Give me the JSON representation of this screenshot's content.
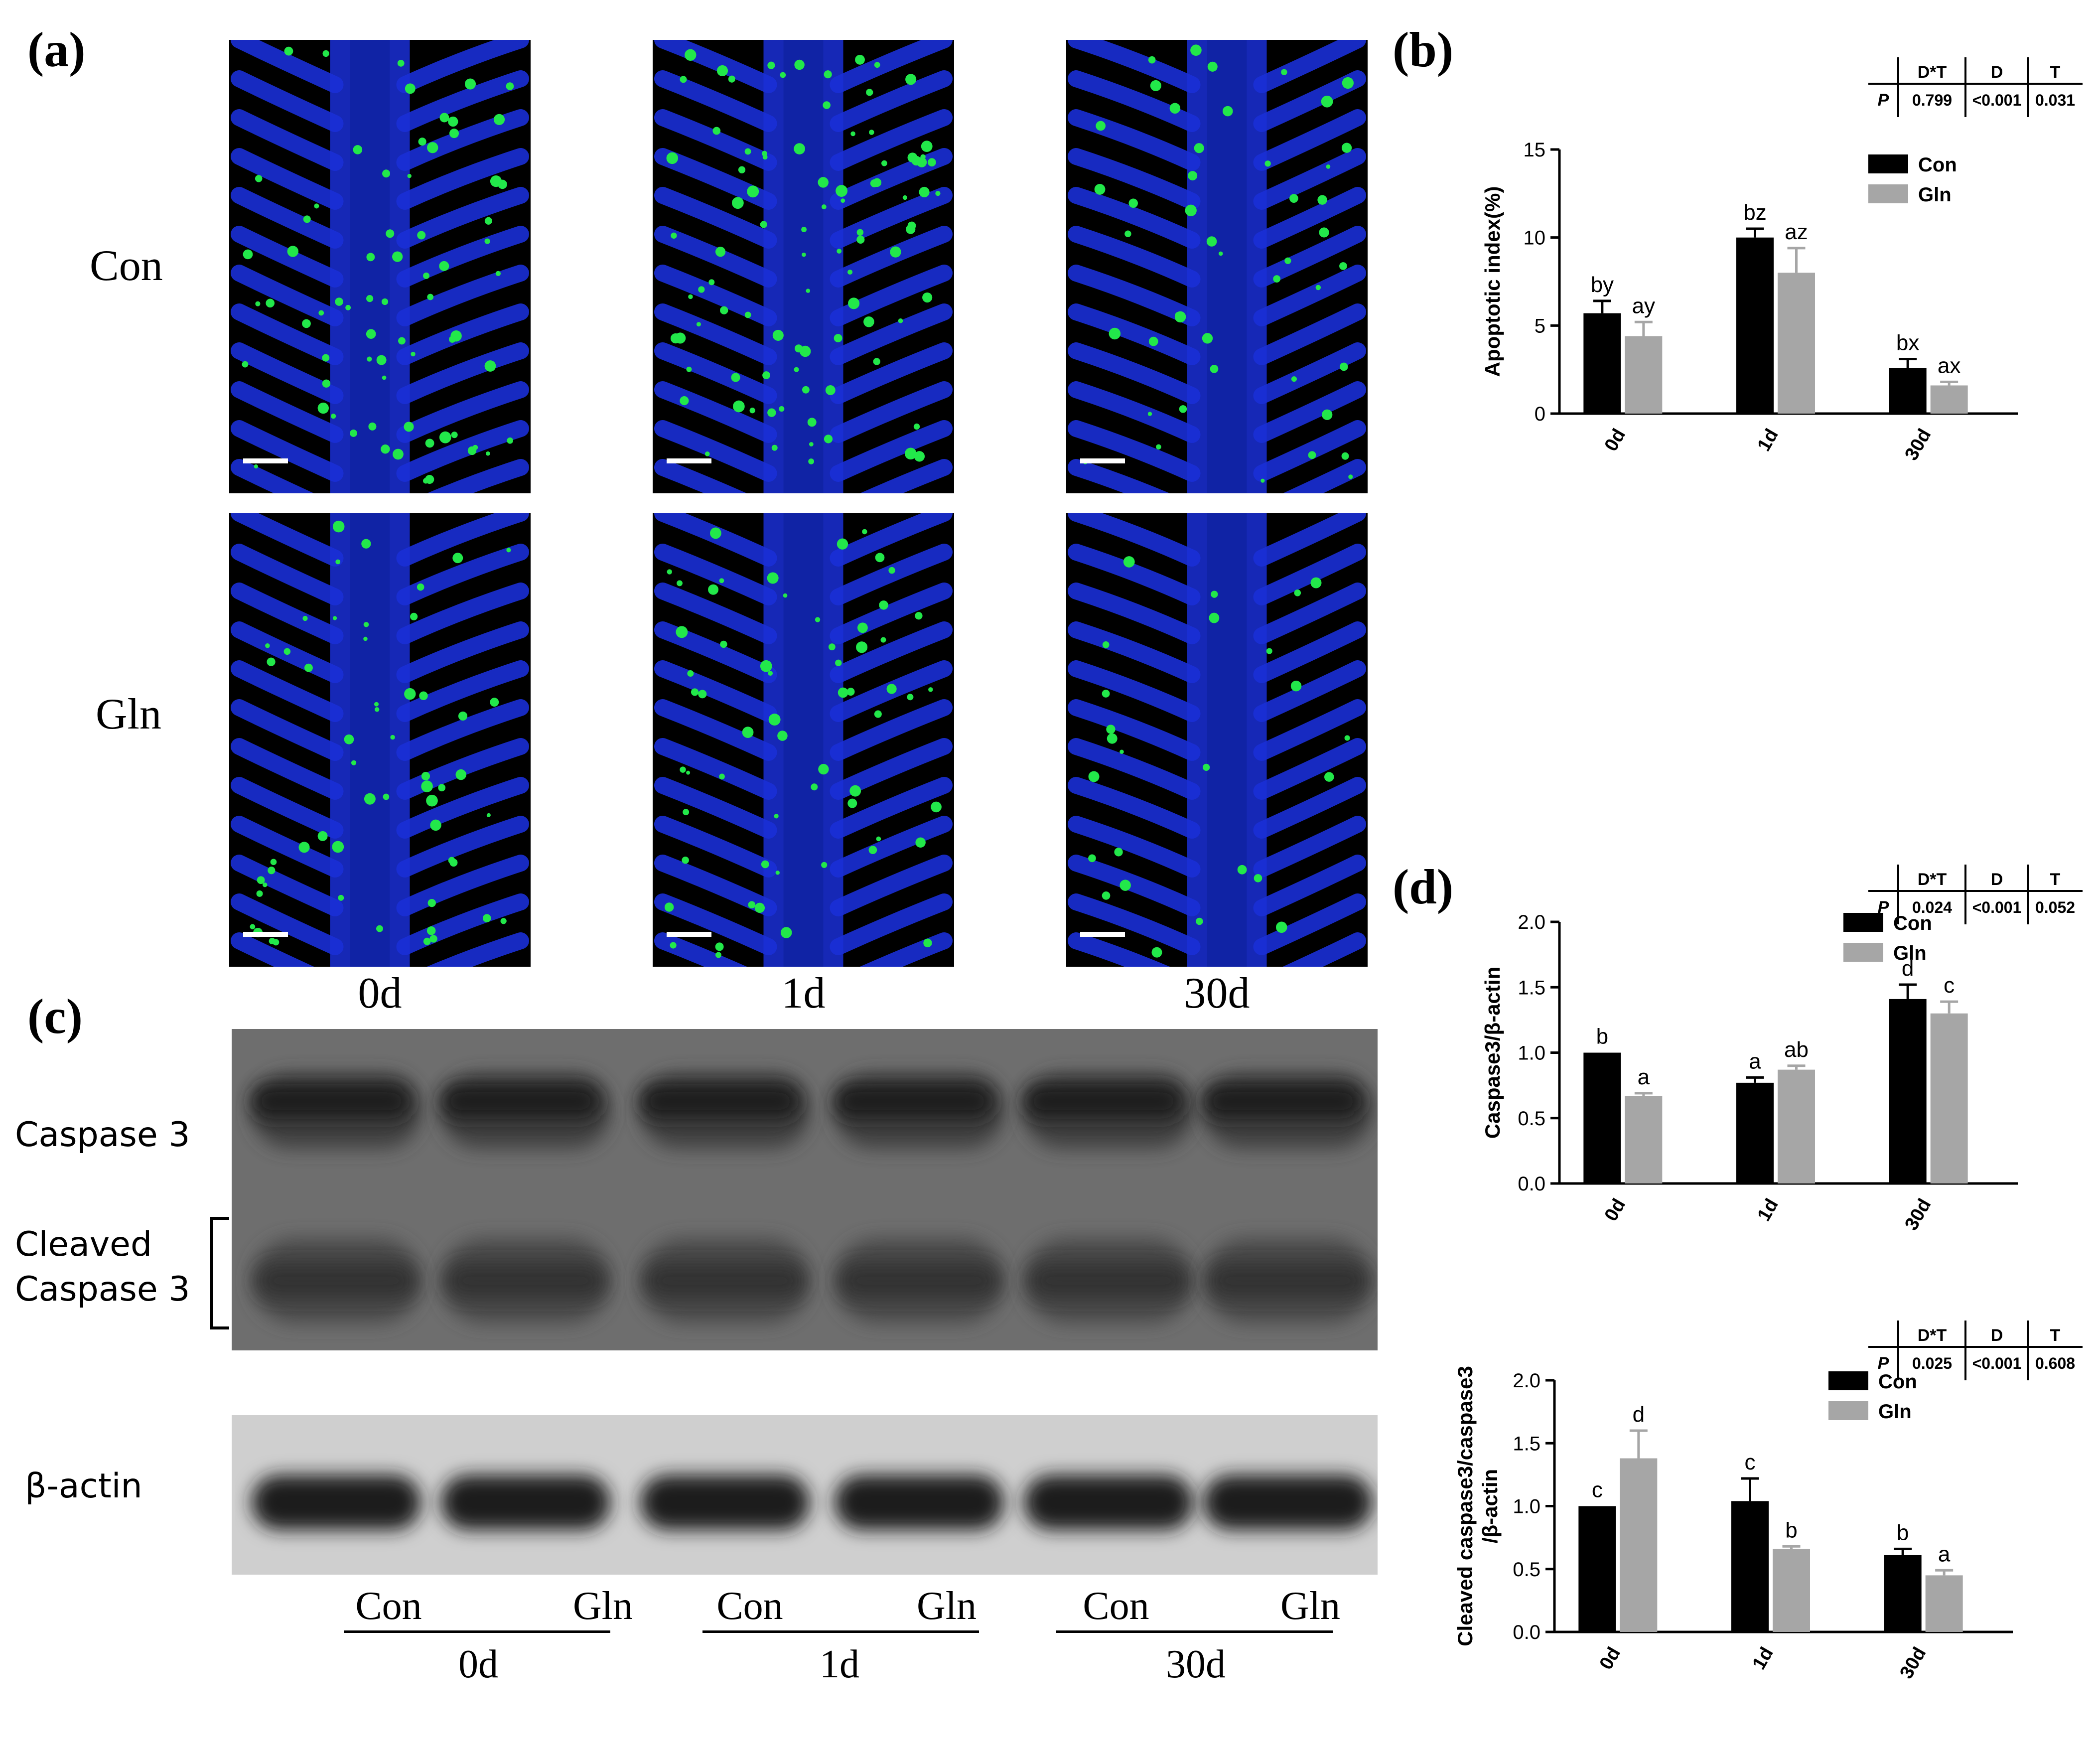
{
  "panels": {
    "a": "(a)",
    "b": "(b)",
    "c": "(c)",
    "d": "(d)"
  },
  "micrographs": {
    "row_labels": [
      "Con",
      "Gln"
    ],
    "day_labels": [
      "0d",
      "1d",
      "30d"
    ]
  },
  "western_blot": {
    "labels": {
      "caspase3": "Caspase 3",
      "cleaved_line1": "Cleaved",
      "cleaved_line2": "Caspase 3",
      "actin": "β-actin"
    },
    "lanes": [
      "Con",
      "Gln",
      "Con",
      "Gln",
      "Con",
      "Gln"
    ],
    "day_groups": [
      "0d",
      "1d",
      "30d"
    ]
  },
  "stat_tables": [
    {
      "col_headers": [
        "D*T",
        "D",
        "T"
      ],
      "row_label": "P",
      "values": [
        "0.799",
        "<0.001",
        "0.031"
      ]
    },
    {
      "col_headers": [
        "D*T",
        "D",
        "T"
      ],
      "row_label": "P",
      "values": [
        "0.024",
        "<0.001",
        "0.052"
      ]
    },
    {
      "col_headers": [
        "D*T",
        "D",
        "T"
      ],
      "row_label": "P",
      "values": [
        "0.025",
        "<0.001",
        "0.608"
      ]
    }
  ],
  "colors": {
    "con": "#000000",
    "gln": "#a6a6a6",
    "micro_blue": "#1a2fd6",
    "micro_green": "#22e84a"
  },
  "chart_data": [
    {
      "type": "bar",
      "title": "",
      "xlabel": "",
      "ylabel": "Apoptotic index(%)",
      "ylim": [
        0,
        15
      ],
      "yticks": [
        "0",
        "5",
        "10",
        "15"
      ],
      "categories": [
        "0d",
        "1d",
        "30d"
      ],
      "legend_position": "top-right",
      "series": [
        {
          "name": "Con",
          "values": [
            5.7,
            10.0,
            2.6
          ],
          "errors": [
            0.7,
            0.5,
            0.5
          ],
          "letters": [
            "by",
            "bz",
            "bx"
          ]
        },
        {
          "name": "Gln",
          "values": [
            4.4,
            8.0,
            1.6
          ],
          "errors": [
            0.8,
            1.4,
            0.2
          ],
          "letters": [
            "ay",
            "az",
            "ax"
          ]
        }
      ]
    },
    {
      "type": "bar",
      "title": "",
      "xlabel": "",
      "ylabel": "Caspase3/β-actin",
      "ylim": [
        0,
        2.0
      ],
      "yticks": [
        "0.0",
        "0.5",
        "1.0",
        "1.5",
        "2.0"
      ],
      "categories": [
        "0d",
        "1d",
        "30d"
      ],
      "legend_position": "top-right",
      "series": [
        {
          "name": "Con",
          "values": [
            1.0,
            0.77,
            1.41
          ],
          "errors": [
            0.0,
            0.04,
            0.11
          ],
          "letters": [
            "b",
            "a",
            "d"
          ]
        },
        {
          "name": "Gln",
          "values": [
            0.67,
            0.87,
            1.3
          ],
          "errors": [
            0.02,
            0.03,
            0.09
          ],
          "letters": [
            "a",
            "ab",
            "c"
          ]
        }
      ]
    },
    {
      "type": "bar",
      "title": "",
      "xlabel": "",
      "ylabel_line1": "Cleaved caspase3/caspase3",
      "ylabel_line2": "/β-actin",
      "ylim": [
        0,
        2.0
      ],
      "yticks": [
        "0.0",
        "0.5",
        "1.0",
        "1.5",
        "2.0"
      ],
      "categories": [
        "0d",
        "1d",
        "30d"
      ],
      "legend_position": "top-right",
      "series": [
        {
          "name": "Con",
          "values": [
            1.0,
            1.04,
            0.61
          ],
          "errors": [
            0.0,
            0.18,
            0.05
          ],
          "letters": [
            "c",
            "c",
            "b"
          ]
        },
        {
          "name": "Gln",
          "values": [
            1.38,
            0.66,
            0.45
          ],
          "errors": [
            0.22,
            0.02,
            0.04
          ],
          "letters": [
            "d",
            "b",
            "a"
          ]
        }
      ]
    }
  ]
}
